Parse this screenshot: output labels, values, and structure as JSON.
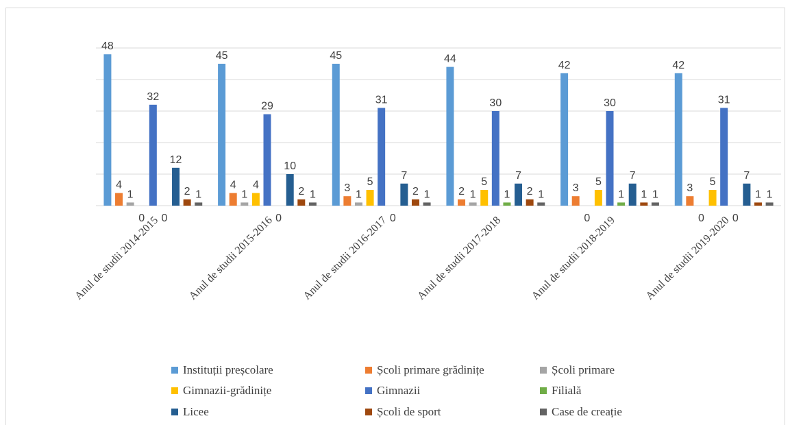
{
  "chart_data": {
    "type": "bar",
    "title": "",
    "xlabel": "",
    "ylabel": "",
    "ylim": [
      0,
      50
    ],
    "grid": true,
    "legend_position": "bottom",
    "categories": [
      "Anul de studii 2014-2015",
      "Anul de studii 2015-2016",
      "Anul de studii 2016-2017",
      "Anul de studii 2017-2018",
      "Anul de studii 2018-2019",
      "Anul de studii 2019-2020"
    ],
    "series": [
      {
        "name": "Instituții preșcolare",
        "color": "#5B9BD5",
        "values": [
          48,
          45,
          45,
          44,
          42,
          42
        ]
      },
      {
        "name": "Școli primare grădinițe",
        "color": "#ED7D31",
        "values": [
          4,
          4,
          3,
          2,
          3,
          3
        ]
      },
      {
        "name": "Școli primare",
        "color": "#A5A5A5",
        "values": [
          1,
          1,
          1,
          1,
          0,
          0
        ]
      },
      {
        "name": "Gimnazii-grădinițe",
        "color": "#FFC000",
        "values": [
          0,
          4,
          5,
          5,
          5,
          5
        ]
      },
      {
        "name": "Gimnazii",
        "color": "#4472C4",
        "values": [
          32,
          29,
          31,
          30,
          30,
          31
        ]
      },
      {
        "name": "Filială",
        "color": "#70AD47",
        "values": [
          0,
          0,
          0,
          1,
          1,
          0
        ]
      },
      {
        "name": "Licee",
        "color": "#255E91",
        "values": [
          12,
          10,
          7,
          7,
          7,
          7
        ]
      },
      {
        "name": "Școli de sport",
        "color": "#9E480E",
        "values": [
          2,
          2,
          2,
          2,
          1,
          1
        ]
      },
      {
        "name": "Case de creație",
        "color": "#636363",
        "values": [
          1,
          1,
          1,
          1,
          1,
          1
        ]
      }
    ]
  }
}
